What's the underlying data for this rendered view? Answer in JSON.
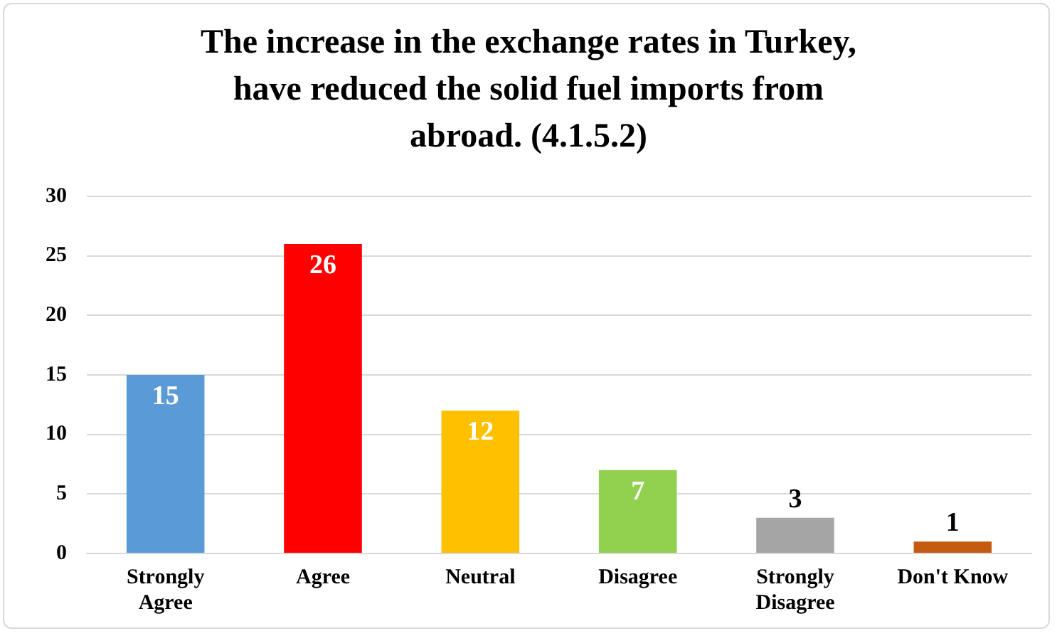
{
  "chart_data": {
    "type": "bar",
    "title": "The increase in the exchange rates in Turkey, have reduced the solid fuel imports from abroad. (4.1.5.2)",
    "categories": [
      "Strongly Agree",
      "Agree",
      "Neutral",
      "Disagree",
      "Strongly Disagree",
      "Don't Know"
    ],
    "values": [
      15,
      26,
      12,
      7,
      3,
      1
    ],
    "colors": [
      "#5b9bd5",
      "#ff0000",
      "#ffc000",
      "#92d050",
      "#a5a5a5",
      "#c55a11"
    ],
    "ylim": [
      0,
      30
    ],
    "yticks": [
      0,
      5,
      10,
      15,
      20,
      25,
      30
    ],
    "grid": "y",
    "data_labels": true,
    "legend": false
  }
}
